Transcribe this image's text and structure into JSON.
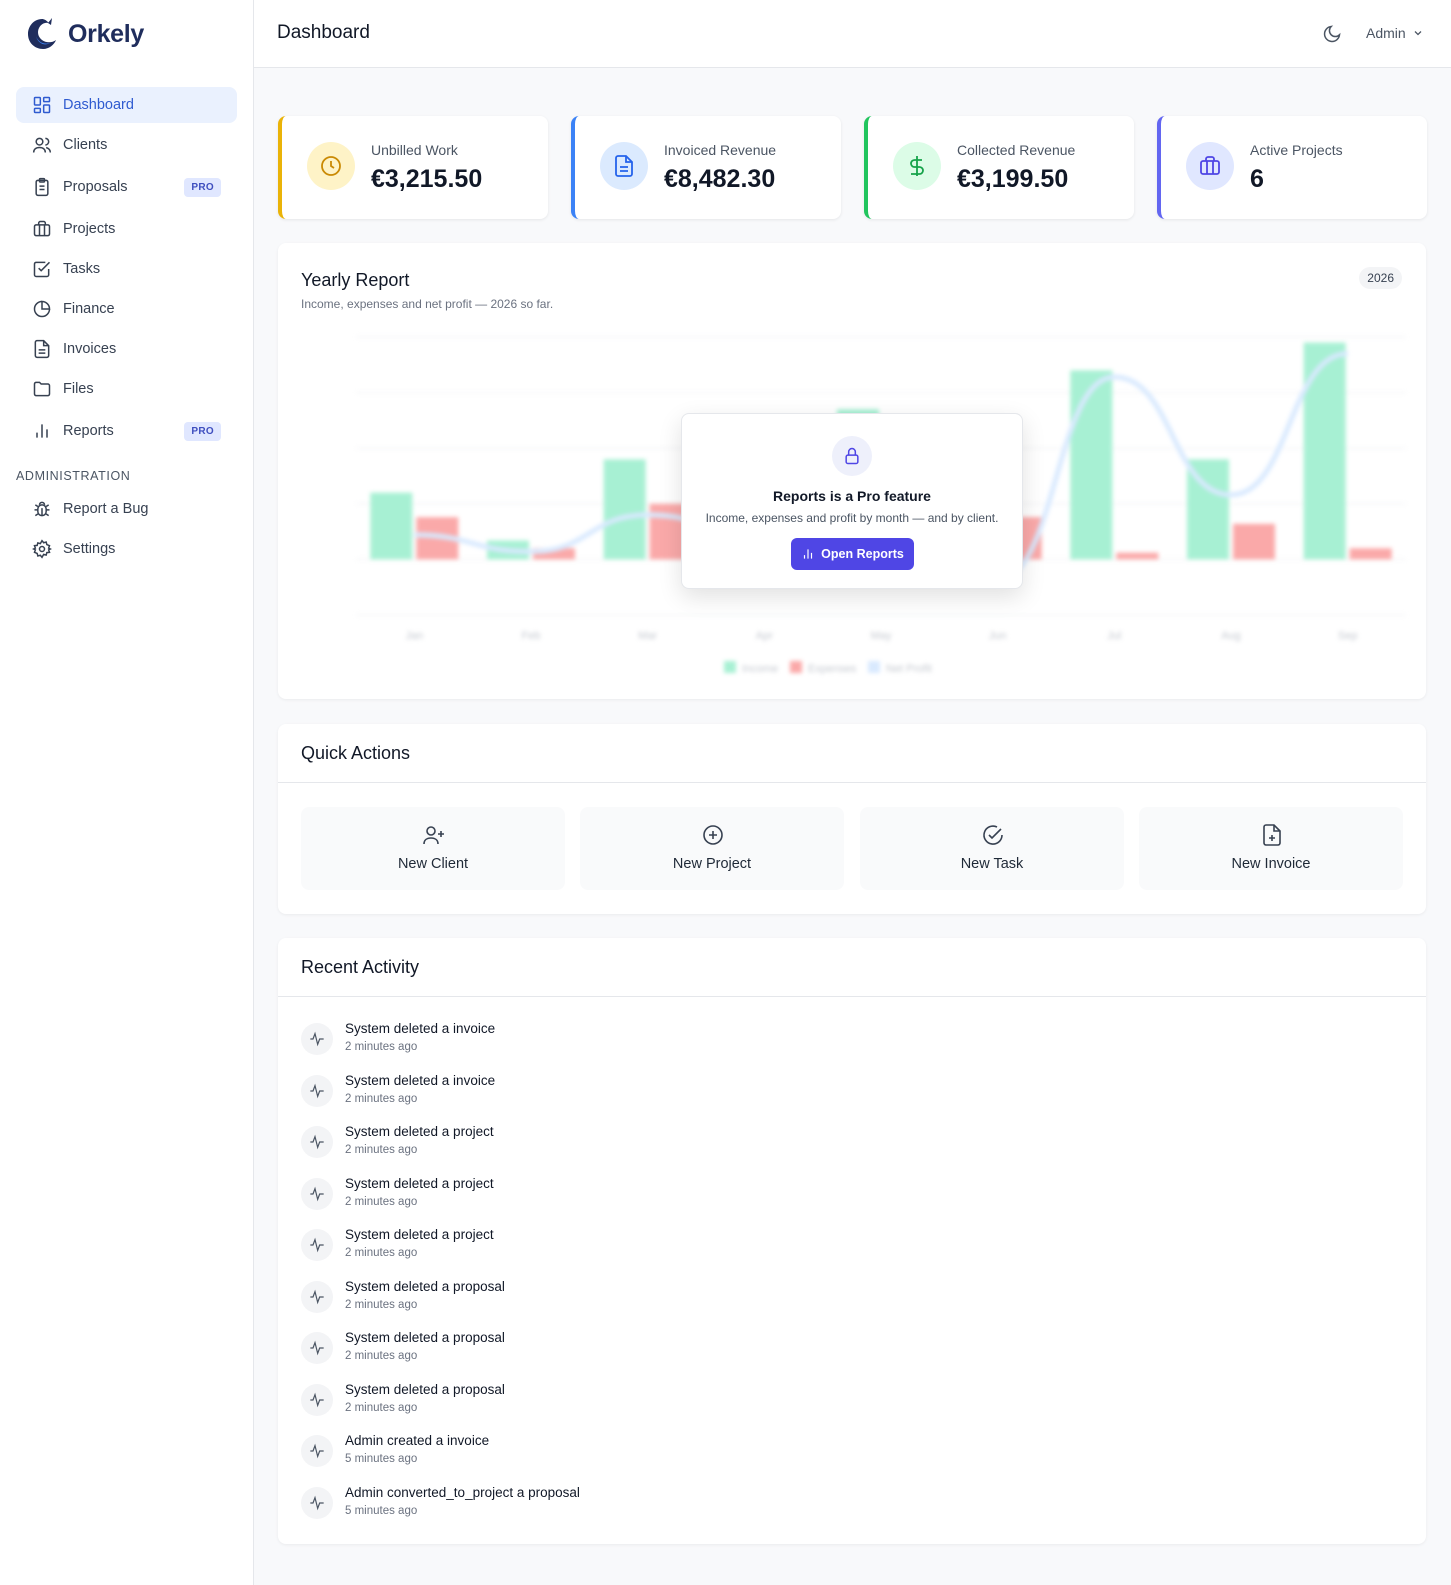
{
  "app": {
    "name": "Orkely"
  },
  "sidebar": {
    "items": [
      {
        "label": "Dashboard",
        "icon": "dashboard-icon",
        "active": true
      },
      {
        "label": "Clients",
        "icon": "users-icon"
      },
      {
        "label": "Proposals",
        "icon": "clipboard-icon",
        "badge": "PRO"
      },
      {
        "label": "Projects",
        "icon": "briefcase-icon"
      },
      {
        "label": "Tasks",
        "icon": "checkbox-icon"
      },
      {
        "label": "Finance",
        "icon": "pie-chart-icon"
      },
      {
        "label": "Invoices",
        "icon": "document-icon"
      },
      {
        "label": "Files",
        "icon": "folder-icon"
      },
      {
        "label": "Reports",
        "icon": "bar-chart-icon",
        "badge": "PRO"
      }
    ],
    "section_label": "ADMINISTRATION",
    "admin_items": [
      {
        "label": "Report a Bug",
        "icon": "bug-icon"
      },
      {
        "label": "Settings",
        "icon": "gear-icon"
      }
    ]
  },
  "header": {
    "title": "Dashboard",
    "user": "Admin"
  },
  "stats": [
    {
      "label": "Unbilled Work",
      "value": "€3,215.50",
      "accent": "#eab308"
    },
    {
      "label": "Invoiced Revenue",
      "value": "€8,482.30",
      "accent": "#3b82f6"
    },
    {
      "label": "Collected Revenue",
      "value": "€3,199.50",
      "accent": "#22c55e"
    },
    {
      "label": "Active Projects",
      "value": "6",
      "accent": "#6366f1"
    }
  ],
  "yearly_report": {
    "title": "Yearly Report",
    "subtitle": "Income, expenses and net profit — 2026 so far.",
    "year_badge": "2026",
    "pro_title": "Reports is a Pro feature",
    "pro_subtitle": "Income, expenses and profit by month — and by client.",
    "pro_button": "Open Reports"
  },
  "chart_data": {
    "type": "bar",
    "categories": [
      "Jan",
      "Feb",
      "Mar",
      "Apr",
      "May",
      "Jun",
      "Jul",
      "Aug",
      "Sep"
    ],
    "series": [
      {
        "name": "Income",
        "values": [
          600,
          170,
          900,
          300,
          1350,
          200,
          1700,
          900,
          1950
        ]
      },
      {
        "name": "Expenses",
        "values": [
          380,
          100,
          500,
          100,
          500,
          380,
          60,
          320,
          100
        ]
      },
      {
        "name": "Net Profit",
        "values": [
          220,
          70,
          400,
          200,
          850,
          -180,
          1640,
          580,
          1850
        ]
      }
    ],
    "ylim": [
      -500,
      2000
    ],
    "colors": {
      "income": "#6ee7b7",
      "expenses": "#f87171",
      "net_profit": "#bfdbfe"
    }
  },
  "quick_actions": {
    "title": "Quick Actions",
    "items": [
      {
        "label": "New Client",
        "icon": "user-plus-icon"
      },
      {
        "label": "New Project",
        "icon": "plus-circle-icon"
      },
      {
        "label": "New Task",
        "icon": "check-circle-icon"
      },
      {
        "label": "New Invoice",
        "icon": "file-plus-icon"
      }
    ]
  },
  "recent_activity": {
    "title": "Recent Activity",
    "items": [
      {
        "text": "System deleted a invoice",
        "time": "2 minutes ago"
      },
      {
        "text": "System deleted a invoice",
        "time": "2 minutes ago"
      },
      {
        "text": "System deleted a project",
        "time": "2 minutes ago"
      },
      {
        "text": "System deleted a project",
        "time": "2 minutes ago"
      },
      {
        "text": "System deleted a project",
        "time": "2 minutes ago"
      },
      {
        "text": "System deleted a proposal",
        "time": "2 minutes ago"
      },
      {
        "text": "System deleted a proposal",
        "time": "2 minutes ago"
      },
      {
        "text": "System deleted a proposal",
        "time": "2 minutes ago"
      },
      {
        "text": "Admin created a invoice",
        "time": "5 minutes ago"
      },
      {
        "text": "Admin converted_to_project a proposal",
        "time": "5 minutes ago"
      }
    ]
  }
}
